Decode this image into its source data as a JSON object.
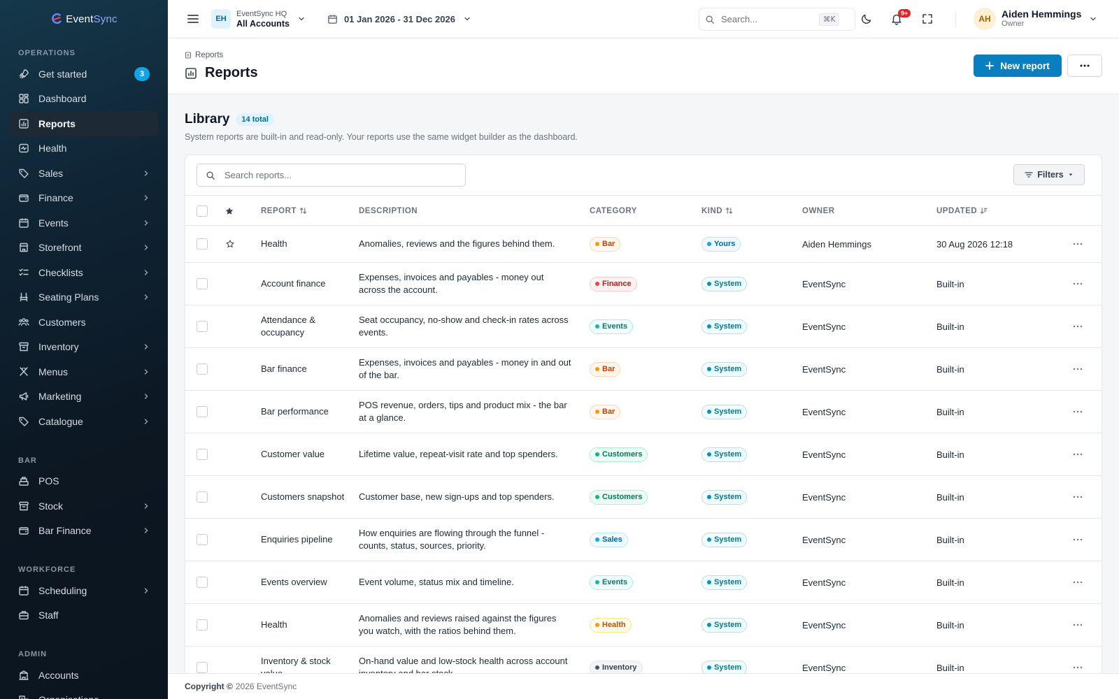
{
  "app": {
    "logo_text_a": "Event",
    "logo_text_b": "Sync"
  },
  "sidebar": {
    "sections": [
      {
        "title": "OPERATIONS",
        "items": [
          {
            "label": "Get started",
            "icon": "rocket-icon",
            "badge": "3"
          },
          {
            "label": "Dashboard",
            "icon": "dashboard-icon"
          },
          {
            "label": "Reports",
            "icon": "bar-chart-icon",
            "active": true
          },
          {
            "label": "Health",
            "icon": "heartbeat-icon"
          },
          {
            "label": "Sales",
            "icon": "tag-icon",
            "chevron": true
          },
          {
            "label": "Finance",
            "icon": "wallet-icon",
            "chevron": true
          },
          {
            "label": "Events",
            "icon": "calendar-icon",
            "chevron": true
          },
          {
            "label": "Storefront",
            "icon": "store-icon",
            "chevron": true
          },
          {
            "label": "Checklists",
            "icon": "checklist-icon",
            "chevron": true
          },
          {
            "label": "Seating Plans",
            "icon": "seat-icon",
            "chevron": true
          },
          {
            "label": "Customers",
            "icon": "users-icon"
          },
          {
            "label": "Inventory",
            "icon": "archive-icon",
            "chevron": true
          },
          {
            "label": "Menus",
            "icon": "utensils-icon",
            "chevron": true
          },
          {
            "label": "Marketing",
            "icon": "megaphone-icon",
            "chevron": true
          },
          {
            "label": "Catalogue",
            "icon": "tag-icon",
            "chevron": true
          }
        ]
      },
      {
        "title": "BAR",
        "items": [
          {
            "label": "POS",
            "icon": "register-icon"
          },
          {
            "label": "Stock",
            "icon": "archive-icon",
            "chevron": true
          },
          {
            "label": "Bar Finance",
            "icon": "wallet-icon",
            "chevron": true
          }
        ]
      },
      {
        "title": "WORKFORCE",
        "items": [
          {
            "label": "Scheduling",
            "icon": "calendar-icon",
            "chevron": true
          },
          {
            "label": "Staff",
            "icon": "briefcase-icon"
          }
        ]
      },
      {
        "title": "ADMIN",
        "items": [
          {
            "label": "Accounts",
            "icon": "building-icon"
          },
          {
            "label": "Organisations",
            "icon": "buildings-icon"
          }
        ]
      }
    ]
  },
  "topbar": {
    "account_initials": "EH",
    "account_org": "EventSync HQ",
    "account_name": "All Accounts",
    "date_range": "01 Jan 2026 - 31 Dec 2026",
    "search_placeholder": "Search...",
    "search_shortcut": "⌘K",
    "notif_badge": "9+",
    "user_initials": "AH",
    "user_name": "Aiden Hemmings",
    "user_role": "Owner"
  },
  "page": {
    "breadcrumb": "Reports",
    "title": "Reports",
    "new_report_label": "New report",
    "more_label": "···"
  },
  "library": {
    "title": "Library",
    "total_badge": "14 total",
    "subtitle": "System reports are built-in and read-only. Your reports use the same widget builder as the dashboard.",
    "search_placeholder": "Search reports...",
    "filters_label": "Filters",
    "columns": {
      "report": "REPORT",
      "description": "DESCRIPTION",
      "category": "CATEGORY",
      "kind": "KIND",
      "owner": "OWNER",
      "updated": "UPDATED"
    },
    "rows": [
      {
        "name": "Health",
        "description": "Anomalies, reviews and the figures behind them.",
        "category": "Bar",
        "kind": "Yours",
        "owner": "Aiden Hemmings",
        "updated": "30 Aug 2026 12:18",
        "star": true
      },
      {
        "name": "Account finance",
        "description": "Expenses, invoices and payables - money out across the account.",
        "category": "Finance",
        "kind": "System",
        "owner": "EventSync",
        "updated": "Built-in"
      },
      {
        "name": "Attendance & occupancy",
        "description": "Seat occupancy, no-show and check-in rates across events.",
        "category": "Events",
        "kind": "System",
        "owner": "EventSync",
        "updated": "Built-in"
      },
      {
        "name": "Bar finance",
        "description": "Expenses, invoices and payables - money in and out of the bar.",
        "category": "Bar",
        "kind": "System",
        "owner": "EventSync",
        "updated": "Built-in"
      },
      {
        "name": "Bar performance",
        "description": "POS revenue, orders, tips and product mix - the bar at a glance.",
        "category": "Bar",
        "kind": "System",
        "owner": "EventSync",
        "updated": "Built-in"
      },
      {
        "name": "Customer value",
        "description": "Lifetime value, repeat-visit rate and top spenders.",
        "category": "Customers",
        "kind": "System",
        "owner": "EventSync",
        "updated": "Built-in"
      },
      {
        "name": "Customers snapshot",
        "description": "Customer base, new sign-ups and top spenders.",
        "category": "Customers",
        "kind": "System",
        "owner": "EventSync",
        "updated": "Built-in"
      },
      {
        "name": "Enquiries pipeline",
        "description": "How enquiries are flowing through the funnel - counts, status, sources, priority.",
        "category": "Sales",
        "kind": "System",
        "owner": "EventSync",
        "updated": "Built-in"
      },
      {
        "name": "Events overview",
        "description": "Event volume, status mix and timeline.",
        "category": "Events",
        "kind": "System",
        "owner": "EventSync",
        "updated": "Built-in"
      },
      {
        "name": "Health",
        "description": "Anomalies and reviews raised against the figures you watch, with the ratios behind them.",
        "category": "Health",
        "kind": "System",
        "owner": "EventSync",
        "updated": "Built-in"
      },
      {
        "name": "Inventory & stock value",
        "description": "On-hand value and low-stock health across account inventory and bar stock.",
        "category": "Inventory",
        "kind": "System",
        "owner": "EventSync",
        "updated": "Built-in"
      }
    ]
  },
  "category_colors": {
    "Bar": {
      "bg": "#fff7ed",
      "border": "#fed7aa",
      "fg": "#c2410c",
      "dot": "#f59e0b"
    },
    "Finance": {
      "bg": "#fef2f2",
      "border": "#fecaca",
      "fg": "#b91c1c",
      "dot": "#ef4444"
    },
    "Events": {
      "bg": "#f0fdfa",
      "border": "#99f6e4",
      "fg": "#0f766e",
      "dot": "#14b8a6"
    },
    "Customers": {
      "bg": "#ecfdf5",
      "border": "#a7f3d0",
      "fg": "#047857",
      "dot": "#10b981"
    },
    "Sales": {
      "bg": "#f0f9ff",
      "border": "#bae6fd",
      "fg": "#0369a1",
      "dot": "#0ea5e9"
    },
    "Health": {
      "bg": "#fffbeb",
      "border": "#fde68a",
      "fg": "#b45309",
      "dot": "#f59e0b"
    },
    "Inventory": {
      "bg": "#f3f4f6",
      "border": "#e5e7eb",
      "fg": "#374151",
      "dot": "#4b5563"
    }
  },
  "kind_colors": {
    "Yours": {
      "bg": "#f0f9ff",
      "border": "#bae6fd",
      "fg": "#0369a1",
      "dot": "#0ea5e9"
    },
    "System": {
      "bg": "#ecfeff",
      "border": "#cbd5e1",
      "fg": "#0e7490",
      "dot": "#0891b2"
    }
  },
  "footer": {
    "copyright_label": "Copyright ©",
    "copyright_text": "2026 EventSync"
  }
}
